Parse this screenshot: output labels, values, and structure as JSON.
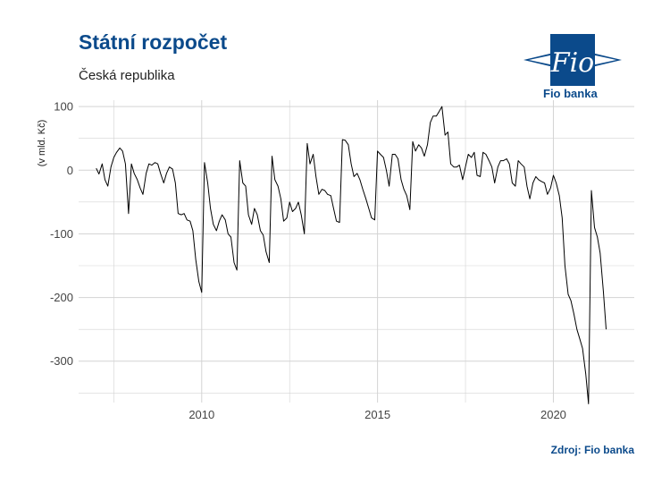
{
  "header": {
    "title": "Státní rozpočet",
    "subtitle": "Česká republika",
    "source": "Zdroj: Fio banka",
    "logo_text": "Fio",
    "logo_name": "Fio banka"
  },
  "colors": {
    "brand": "#0b4a8b",
    "line": "#000000",
    "grid": "#d3d3d3"
  },
  "chart_data": {
    "type": "line",
    "title": "Státní rozpočet",
    "subtitle": "Česká republika",
    "xlabel": "",
    "ylabel": "(v mld. Kč)",
    "xlim": [
      2006.5,
      2022.3
    ],
    "ylim": [
      -365,
      110
    ],
    "x_ticks": [
      2010,
      2015,
      2020
    ],
    "y_ticks": [
      100,
      0,
      -100,
      -200,
      -300
    ],
    "grid": true,
    "series": [
      {
        "points": [
          [
            2007.0,
            3
          ],
          [
            2007.08,
            -6
          ],
          [
            2007.17,
            10
          ],
          [
            2007.25,
            -15
          ],
          [
            2007.33,
            -25
          ],
          [
            2007.42,
            5
          ],
          [
            2007.5,
            20
          ],
          [
            2007.58,
            28
          ],
          [
            2007.67,
            35
          ],
          [
            2007.75,
            30
          ],
          [
            2007.83,
            10
          ],
          [
            2007.92,
            -68
          ],
          [
            2008.0,
            10
          ],
          [
            2008.08,
            -5
          ],
          [
            2008.17,
            -15
          ],
          [
            2008.25,
            -28
          ],
          [
            2008.33,
            -38
          ],
          [
            2008.42,
            -5
          ],
          [
            2008.5,
            10
          ],
          [
            2008.58,
            8
          ],
          [
            2008.67,
            12
          ],
          [
            2008.75,
            10
          ],
          [
            2008.83,
            -5
          ],
          [
            2008.92,
            -20
          ],
          [
            2009.0,
            -5
          ],
          [
            2009.08,
            5
          ],
          [
            2009.17,
            2
          ],
          [
            2009.25,
            -20
          ],
          [
            2009.33,
            -68
          ],
          [
            2009.42,
            -70
          ],
          [
            2009.5,
            -68
          ],
          [
            2009.58,
            -78
          ],
          [
            2009.67,
            -80
          ],
          [
            2009.75,
            -95
          ],
          [
            2009.83,
            -140
          ],
          [
            2009.92,
            -175
          ],
          [
            2010.0,
            -192
          ],
          [
            2010.08,
            12
          ],
          [
            2010.17,
            -20
          ],
          [
            2010.25,
            -60
          ],
          [
            2010.33,
            -85
          ],
          [
            2010.42,
            -95
          ],
          [
            2010.5,
            -80
          ],
          [
            2010.58,
            -70
          ],
          [
            2010.67,
            -78
          ],
          [
            2010.75,
            -100
          ],
          [
            2010.83,
            -105
          ],
          [
            2010.92,
            -145
          ],
          [
            2011.0,
            -157
          ],
          [
            2011.08,
            15
          ],
          [
            2011.17,
            -20
          ],
          [
            2011.25,
            -25
          ],
          [
            2011.33,
            -70
          ],
          [
            2011.42,
            -85
          ],
          [
            2011.5,
            -60
          ],
          [
            2011.58,
            -70
          ],
          [
            2011.67,
            -95
          ],
          [
            2011.75,
            -102
          ],
          [
            2011.83,
            -128
          ],
          [
            2011.92,
            -145
          ],
          [
            2012.0,
            22
          ],
          [
            2012.08,
            -15
          ],
          [
            2012.17,
            -25
          ],
          [
            2012.25,
            -45
          ],
          [
            2012.33,
            -80
          ],
          [
            2012.42,
            -75
          ],
          [
            2012.5,
            -50
          ],
          [
            2012.58,
            -65
          ],
          [
            2012.67,
            -60
          ],
          [
            2012.75,
            -50
          ],
          [
            2012.83,
            -70
          ],
          [
            2012.92,
            -100
          ],
          [
            2013.0,
            42
          ],
          [
            2013.08,
            10
          ],
          [
            2013.17,
            25
          ],
          [
            2013.25,
            -10
          ],
          [
            2013.33,
            -38
          ],
          [
            2013.42,
            -30
          ],
          [
            2013.5,
            -32
          ],
          [
            2013.58,
            -38
          ],
          [
            2013.67,
            -40
          ],
          [
            2013.75,
            -60
          ],
          [
            2013.83,
            -80
          ],
          [
            2013.92,
            -82
          ],
          [
            2014.0,
            48
          ],
          [
            2014.08,
            47
          ],
          [
            2014.17,
            40
          ],
          [
            2014.25,
            10
          ],
          [
            2014.33,
            -10
          ],
          [
            2014.42,
            -5
          ],
          [
            2014.5,
            -15
          ],
          [
            2014.58,
            -30
          ],
          [
            2014.67,
            -45
          ],
          [
            2014.75,
            -60
          ],
          [
            2014.83,
            -75
          ],
          [
            2014.92,
            -78
          ],
          [
            2015.0,
            30
          ],
          [
            2015.08,
            25
          ],
          [
            2015.17,
            20
          ],
          [
            2015.25,
            0
          ],
          [
            2015.33,
            -25
          ],
          [
            2015.42,
            25
          ],
          [
            2015.5,
            25
          ],
          [
            2015.58,
            18
          ],
          [
            2015.67,
            -15
          ],
          [
            2015.75,
            -30
          ],
          [
            2015.83,
            -40
          ],
          [
            2015.92,
            -62
          ],
          [
            2016.0,
            45
          ],
          [
            2016.08,
            30
          ],
          [
            2016.17,
            40
          ],
          [
            2016.25,
            35
          ],
          [
            2016.33,
            22
          ],
          [
            2016.42,
            40
          ],
          [
            2016.5,
            75
          ],
          [
            2016.58,
            85
          ],
          [
            2016.67,
            85
          ],
          [
            2016.75,
            92
          ],
          [
            2016.83,
            100
          ],
          [
            2016.92,
            55
          ],
          [
            2017.0,
            60
          ],
          [
            2017.08,
            10
          ],
          [
            2017.17,
            5
          ],
          [
            2017.25,
            5
          ],
          [
            2017.33,
            8
          ],
          [
            2017.42,
            -15
          ],
          [
            2017.5,
            5
          ],
          [
            2017.58,
            25
          ],
          [
            2017.67,
            20
          ],
          [
            2017.75,
            28
          ],
          [
            2017.83,
            -8
          ],
          [
            2017.92,
            -10
          ],
          [
            2018.0,
            28
          ],
          [
            2018.08,
            25
          ],
          [
            2018.17,
            15
          ],
          [
            2018.25,
            5
          ],
          [
            2018.33,
            -20
          ],
          [
            2018.42,
            5
          ],
          [
            2018.5,
            15
          ],
          [
            2018.58,
            15
          ],
          [
            2018.67,
            18
          ],
          [
            2018.75,
            10
          ],
          [
            2018.83,
            -20
          ],
          [
            2018.92,
            -25
          ],
          [
            2019.0,
            15
          ],
          [
            2019.08,
            10
          ],
          [
            2019.17,
            5
          ],
          [
            2019.25,
            -25
          ],
          [
            2019.33,
            -45
          ],
          [
            2019.42,
            -20
          ],
          [
            2019.5,
            -10
          ],
          [
            2019.58,
            -15
          ],
          [
            2019.67,
            -18
          ],
          [
            2019.75,
            -20
          ],
          [
            2019.83,
            -38
          ],
          [
            2019.92,
            -28
          ],
          [
            2020.0,
            -8
          ],
          [
            2020.08,
            -20
          ],
          [
            2020.17,
            -40
          ],
          [
            2020.25,
            -75
          ],
          [
            2020.33,
            -150
          ],
          [
            2020.42,
            -195
          ],
          [
            2020.5,
            -205
          ],
          [
            2020.58,
            -225
          ],
          [
            2020.67,
            -250
          ],
          [
            2020.75,
            -265
          ],
          [
            2020.83,
            -280
          ],
          [
            2020.92,
            -320
          ],
          [
            2021.0,
            -367
          ],
          [
            2021.08,
            -32
          ],
          [
            2021.17,
            -90
          ],
          [
            2021.25,
            -105
          ],
          [
            2021.33,
            -130
          ],
          [
            2021.42,
            -190
          ],
          [
            2021.5,
            -250
          ]
        ]
      }
    ]
  }
}
